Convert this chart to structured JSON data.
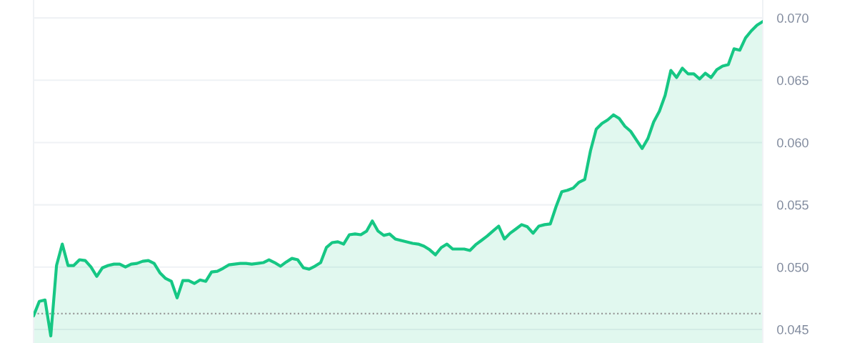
{
  "chart_data": {
    "type": "area",
    "categories": [
      null,
      null,
      null,
      null,
      null,
      null,
      null,
      null,
      null,
      null,
      null,
      null,
      null,
      null,
      null,
      null,
      null,
      null,
      null,
      null,
      null,
      null,
      null,
      null,
      null,
      null,
      null,
      null,
      null,
      null,
      null,
      null,
      null,
      null,
      null,
      null,
      null,
      null,
      null,
      null,
      null,
      null,
      null,
      null,
      null,
      null,
      null,
      null,
      null,
      null,
      null,
      null,
      null,
      null,
      null,
      null,
      null,
      null,
      null,
      null,
      null,
      null,
      null,
      null,
      null,
      null,
      null,
      null,
      null,
      null,
      null,
      null,
      null,
      null,
      null,
      null,
      null,
      null,
      null,
      null,
      null,
      null,
      null,
      null,
      null,
      null,
      null,
      null,
      null,
      null,
      null,
      null,
      null,
      null,
      null,
      null,
      null,
      null,
      null,
      null,
      null,
      null,
      null,
      null,
      null,
      null,
      null,
      null,
      null,
      null,
      null,
      null,
      null,
      null,
      null,
      null,
      null,
      null,
      null,
      null,
      null,
      null,
      null,
      null,
      null,
      null,
      null,
      null
    ],
    "series": [
      {
        "color": "#16c784",
        "values": [
          0.04609,
          0.04725,
          0.04736,
          0.04448,
          0.05013,
          0.05185,
          0.05013,
          0.05013,
          0.05059,
          0.05053,
          0.05001,
          0.04926,
          0.04995,
          0.05013,
          0.05024,
          0.05024,
          0.05001,
          0.05024,
          0.0503,
          0.05047,
          0.05053,
          0.0503,
          0.04955,
          0.04909,
          0.04886,
          0.04753,
          0.04892,
          0.04892,
          0.04869,
          0.04897,
          0.04886,
          0.04961,
          0.04967,
          0.0499,
          0.05018,
          0.05024,
          0.0503,
          0.0503,
          0.05024,
          0.0503,
          0.05036,
          0.05059,
          0.05036,
          0.05007,
          0.05041,
          0.0507,
          0.05059,
          0.04995,
          0.04984,
          0.05007,
          0.05036,
          0.05157,
          0.05197,
          0.05203,
          0.05185,
          0.0526,
          0.05266,
          0.0526,
          0.05289,
          0.0537,
          0.05289,
          0.05255,
          0.05266,
          0.05226,
          0.05214,
          0.05203,
          0.05191,
          0.05185,
          0.05168,
          0.05139,
          0.05099,
          0.05157,
          0.05185,
          0.05145,
          0.05145,
          0.05145,
          0.05134,
          0.0518,
          0.05214,
          0.05249,
          0.05289,
          0.05329,
          0.05226,
          0.05272,
          0.05306,
          0.05341,
          0.05324,
          0.05272,
          0.05329,
          0.05341,
          0.05347,
          0.05485,
          0.05606,
          0.05617,
          0.05635,
          0.05681,
          0.05704,
          0.05934,
          0.06107,
          0.06153,
          0.06182,
          0.06222,
          0.06193,
          0.0613,
          0.0609,
          0.06021,
          0.05952,
          0.06032,
          0.06165,
          0.06251,
          0.06378,
          0.06579,
          0.06522,
          0.06597,
          0.06551,
          0.06551,
          0.0651,
          0.06556,
          0.06522,
          0.06585,
          0.06614,
          0.06625,
          0.06752,
          0.06741,
          0.06839,
          0.06896,
          0.06942,
          0.06971
        ]
      }
    ],
    "ylim": [
      0.04391,
      0.07144
    ],
    "yticks": [
      {
        "value": 0.045,
        "label": "0.045"
      },
      {
        "value": 0.05,
        "label": "0.050"
      },
      {
        "value": 0.055,
        "label": "0.055"
      },
      {
        "value": 0.06,
        "label": "0.060"
      },
      {
        "value": 0.065,
        "label": "0.065"
      },
      {
        "value": 0.07,
        "label": "0.070"
      }
    ],
    "ref_lines": [
      {
        "axis": "y",
        "value": 0.04627,
        "color": "#999999",
        "line_style": "dotted"
      }
    ],
    "grid": "y",
    "line_style": "solid",
    "marker": "none"
  }
}
